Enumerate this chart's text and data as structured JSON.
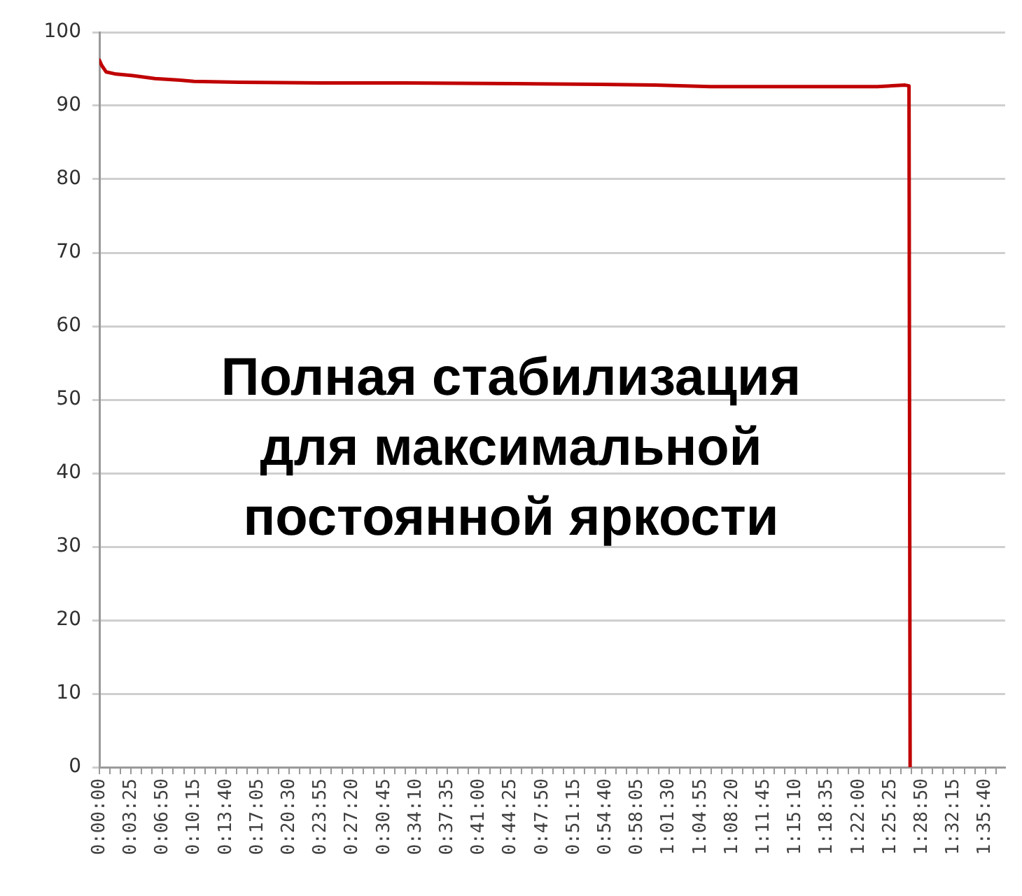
{
  "chart_data": {
    "type": "line",
    "annotations": [
      "Полная стабилизация для максимальной постоянной яркости"
    ],
    "x": [
      0,
      0.004,
      0.012,
      0.03,
      0.06,
      0.1,
      0.14,
      0.17,
      0.25,
      0.4,
      0.55,
      0.75,
      0.9,
      1.0,
      1.1,
      1.2,
      1.3,
      1.4,
      1.45,
      1.457,
      1.459
    ],
    "series": [
      {
        "color": "#c00000",
        "values": [
          96.2,
          95.5,
          94.6,
          94.3,
          94.1,
          93.7,
          93.5,
          93.3,
          93.2,
          93.1,
          93.1,
          93.0,
          92.9,
          92.8,
          92.6,
          92.6,
          92.6,
          92.6,
          92.8,
          92.7,
          0
        ]
      }
    ],
    "xlim": [
      0,
      1.63
    ],
    "xticks": [
      {
        "value": 0,
        "label": "0:00:00"
      },
      {
        "value": 0.01898,
        "label": null
      },
      {
        "value": 0.03796,
        "label": null
      },
      {
        "value": 0.05694,
        "label": "0:03:25"
      },
      {
        "value": 0.07593,
        "label": null
      },
      {
        "value": 0.09491,
        "label": null
      },
      {
        "value": 0.11389,
        "label": "0:06:50"
      },
      {
        "value": 0.13287,
        "label": null
      },
      {
        "value": 0.15185,
        "label": null
      },
      {
        "value": 0.17083,
        "label": "0:10:15"
      },
      {
        "value": 0.18981,
        "label": null
      },
      {
        "value": 0.2088,
        "label": null
      },
      {
        "value": 0.22778,
        "label": "0:13:40"
      },
      {
        "value": 0.24676,
        "label": null
      },
      {
        "value": 0.26574,
        "label": null
      },
      {
        "value": 0.28472,
        "label": "0:17:05"
      },
      {
        "value": 0.3037,
        "label": null
      },
      {
        "value": 0.32269,
        "label": null
      },
      {
        "value": 0.34167,
        "label": "0:20:30"
      },
      {
        "value": 0.36065,
        "label": null
      },
      {
        "value": 0.37963,
        "label": null
      },
      {
        "value": 0.39861,
        "label": "0:23:55"
      },
      {
        "value": 0.41759,
        "label": null
      },
      {
        "value": 0.43657,
        "label": null
      },
      {
        "value": 0.45556,
        "label": "0:27:20"
      },
      {
        "value": 0.47454,
        "label": null
      },
      {
        "value": 0.49352,
        "label": null
      },
      {
        "value": 0.5125,
        "label": "0:30:45"
      },
      {
        "value": 0.53148,
        "label": null
      },
      {
        "value": 0.55046,
        "label": null
      },
      {
        "value": 0.56944,
        "label": "0:34:10"
      },
      {
        "value": 0.58843,
        "label": null
      },
      {
        "value": 0.60741,
        "label": null
      },
      {
        "value": 0.62639,
        "label": "0:37:35"
      },
      {
        "value": 0.64537,
        "label": null
      },
      {
        "value": 0.66435,
        "label": null
      },
      {
        "value": 0.68333,
        "label": "0:41:00"
      },
      {
        "value": 0.70231,
        "label": null
      },
      {
        "value": 0.7213,
        "label": null
      },
      {
        "value": 0.74028,
        "label": "0:44:25"
      },
      {
        "value": 0.75926,
        "label": null
      },
      {
        "value": 0.77824,
        "label": null
      },
      {
        "value": 0.79722,
        "label": "0:47:50"
      },
      {
        "value": 0.8162,
        "label": null
      },
      {
        "value": 0.83519,
        "label": null
      },
      {
        "value": 0.85417,
        "label": "0:51:15"
      },
      {
        "value": 0.87315,
        "label": null
      },
      {
        "value": 0.89213,
        "label": null
      },
      {
        "value": 0.91111,
        "label": "0:54:40"
      },
      {
        "value": 0.93009,
        "label": null
      },
      {
        "value": 0.94907,
        "label": null
      },
      {
        "value": 0.96806,
        "label": "0:58:05"
      },
      {
        "value": 0.98704,
        "label": null
      },
      {
        "value": 1.00602,
        "label": null
      },
      {
        "value": 1.025,
        "label": "1:01:30"
      },
      {
        "value": 1.04398,
        "label": null
      },
      {
        "value": 1.06296,
        "label": null
      },
      {
        "value": 1.08194,
        "label": "1:04:55"
      },
      {
        "value": 1.10093,
        "label": null
      },
      {
        "value": 1.11991,
        "label": null
      },
      {
        "value": 1.13889,
        "label": "1:08:20"
      },
      {
        "value": 1.15787,
        "label": null
      },
      {
        "value": 1.17685,
        "label": null
      },
      {
        "value": 1.19583,
        "label": "1:11:45"
      },
      {
        "value": 1.21481,
        "label": null
      },
      {
        "value": 1.2338,
        "label": null
      },
      {
        "value": 1.25278,
        "label": "1:15:10"
      },
      {
        "value": 1.27176,
        "label": null
      },
      {
        "value": 1.29074,
        "label": null
      },
      {
        "value": 1.30972,
        "label": "1:18:35"
      },
      {
        "value": 1.3287,
        "label": null
      },
      {
        "value": 1.34769,
        "label": null
      },
      {
        "value": 1.36667,
        "label": "1:22:00"
      },
      {
        "value": 1.38565,
        "label": null
      },
      {
        "value": 1.40463,
        "label": null
      },
      {
        "value": 1.42361,
        "label": "1:25:25"
      },
      {
        "value": 1.44259,
        "label": null
      },
      {
        "value": 1.46157,
        "label": null
      },
      {
        "value": 1.48056,
        "label": "1:28:50"
      },
      {
        "value": 1.49954,
        "label": null
      },
      {
        "value": 1.51852,
        "label": null
      },
      {
        "value": 1.5375,
        "label": "1:32:15"
      },
      {
        "value": 1.55648,
        "label": null
      },
      {
        "value": 1.57546,
        "label": null
      },
      {
        "value": 1.59444,
        "label": "1:35:40"
      },
      {
        "value": 1.61343,
        "label": null
      }
    ],
    "ylim": [
      0,
      100
    ],
    "yticks": [
      0,
      10,
      20,
      30,
      40,
      50,
      60,
      70,
      80,
      90,
      100
    ],
    "grid": "y",
    "marker": "none"
  }
}
